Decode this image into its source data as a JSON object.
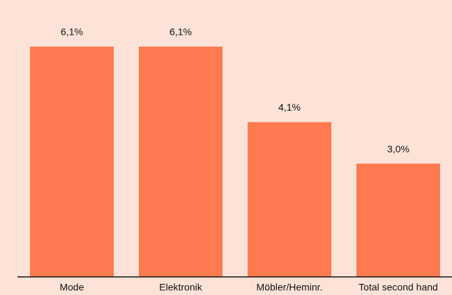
{
  "chart_data": {
    "type": "bar",
    "categories": [
      "Mode",
      "Elektronik",
      "Möbler/Heminr.",
      "Total second hand"
    ],
    "values": [
      6.1,
      6.1,
      4.1,
      3.0
    ],
    "value_labels": [
      "6,1%",
      "6,1%",
      "4,1%",
      "3,0%"
    ],
    "color": "#ff7a50"
  }
}
